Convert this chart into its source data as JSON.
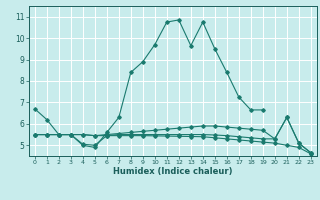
{
  "background_color": "#c8ecec",
  "grid_color": "#ffffff",
  "line_color": "#1a7a6e",
  "xlabel": "Humidex (Indice chaleur)",
  "xlim": [
    -0.5,
    23.5
  ],
  "ylim": [
    4.5,
    11.5
  ],
  "yticks": [
    5,
    6,
    7,
    8,
    9,
    10,
    11
  ],
  "xticks": [
    0,
    1,
    2,
    3,
    4,
    5,
    6,
    7,
    8,
    9,
    10,
    11,
    12,
    13,
    14,
    15,
    16,
    17,
    18,
    19,
    20,
    21,
    22,
    23
  ],
  "lines": [
    {
      "x": [
        0,
        1,
        2,
        3,
        4,
        5,
        6,
        7,
        8,
        9,
        10,
        11,
        12,
        13,
        14,
        15,
        16,
        17,
        18,
        19
      ],
      "y": [
        6.7,
        6.2,
        5.5,
        5.5,
        5.0,
        4.9,
        5.6,
        6.3,
        8.4,
        8.9,
        9.7,
        10.75,
        10.85,
        9.65,
        10.75,
        9.5,
        8.4,
        7.25,
        6.65,
        6.65
      ]
    },
    {
      "x": [
        0,
        1,
        2,
        3,
        4,
        5,
        6,
        7,
        8,
        9,
        10,
        11,
        12,
        13,
        14,
        15,
        16,
        17,
        18,
        19,
        20,
        21,
        22,
        23
      ],
      "y": [
        5.5,
        5.5,
        5.5,
        5.5,
        5.5,
        5.45,
        5.5,
        5.55,
        5.6,
        5.65,
        5.7,
        5.75,
        5.8,
        5.85,
        5.9,
        5.9,
        5.85,
        5.8,
        5.75,
        5.7,
        5.3,
        6.3,
        5.1,
        4.65
      ]
    },
    {
      "x": [
        0,
        1,
        2,
        3,
        4,
        5,
        6,
        7,
        8,
        9,
        10,
        11,
        12,
        13,
        14,
        15,
        16,
        17,
        18,
        19,
        20,
        21,
        22,
        23
      ],
      "y": [
        5.5,
        5.5,
        5.5,
        5.5,
        5.5,
        5.45,
        5.45,
        5.45,
        5.45,
        5.45,
        5.44,
        5.43,
        5.42,
        5.41,
        5.4,
        5.35,
        5.3,
        5.25,
        5.2,
        5.15,
        5.1,
        5.0,
        4.9,
        4.6
      ]
    },
    {
      "x": [
        0,
        1,
        2,
        3,
        4,
        5,
        6,
        7,
        8,
        9,
        10,
        11,
        12,
        13,
        14,
        15,
        16,
        17,
        18,
        19,
        20,
        21,
        22,
        23
      ],
      "y": [
        5.5,
        5.5,
        5.5,
        5.5,
        5.05,
        5.0,
        5.45,
        5.5,
        5.5,
        5.5,
        5.5,
        5.5,
        5.5,
        5.5,
        5.5,
        5.48,
        5.45,
        5.4,
        5.35,
        5.3,
        5.3,
        6.3,
        5.1,
        4.65
      ]
    }
  ]
}
